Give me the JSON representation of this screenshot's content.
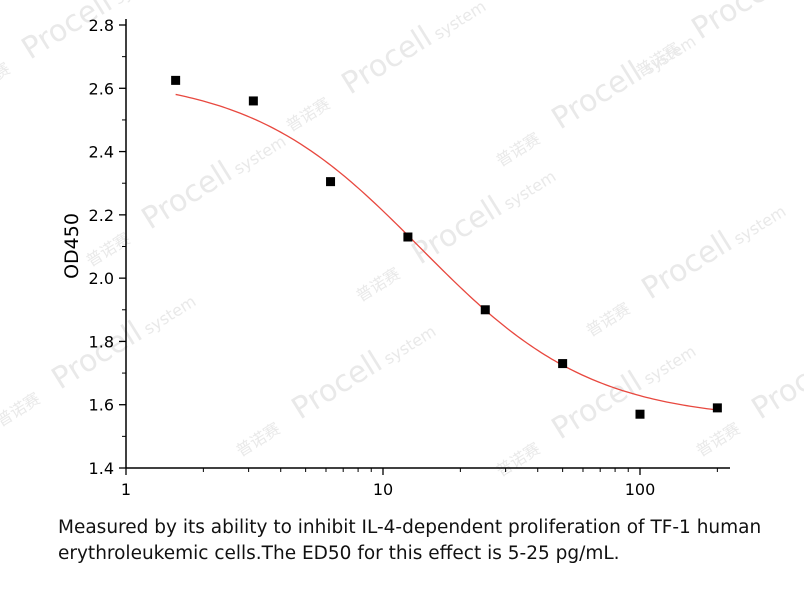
{
  "caption": "Measured by its ability to inhibit IL-4-dependent proliferation of TF-1 human erythroleukemic cells.The ED50 for this effect is 5-25 pg/mL.",
  "watermark": {
    "brand": "Procell",
    "sub": "system",
    "cn": "普诺赛"
  },
  "chart_data": {
    "type": "scatter",
    "title": "",
    "xlabel": "",
    "ylabel": "OD450",
    "xscale": "log",
    "xlim": [
      1,
      220
    ],
    "ylim": [
      1.4,
      2.8
    ],
    "xticks": [
      1,
      10,
      100
    ],
    "yticks": [
      1.4,
      1.6,
      1.8,
      2.0,
      2.2,
      2.4,
      2.6,
      2.8
    ],
    "grid": false,
    "legend": "none",
    "colors": {
      "points": "#000000",
      "fit": "#e8483f",
      "axis": "#000000"
    },
    "points": {
      "x": [
        1.56,
        3.13,
        6.25,
        12.5,
        25,
        50,
        100,
        200
      ],
      "y": [
        2.625,
        2.56,
        2.305,
        2.13,
        1.9,
        1.73,
        1.57,
        1.59
      ]
    },
    "fit": {
      "model": "4PL",
      "top": 2.64,
      "bottom": 1.55,
      "ec50": 14,
      "hill": 1.3,
      "xrange": [
        1.56,
        200
      ]
    }
  }
}
